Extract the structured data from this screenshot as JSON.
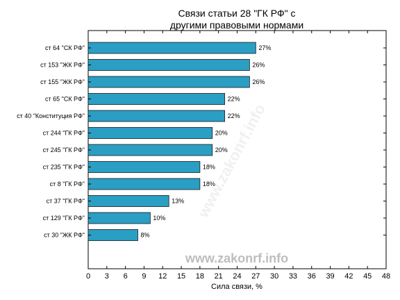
{
  "chart_data": {
    "type": "bar",
    "orientation": "horizontal",
    "title": "Связи статьи 28 \"ГК РФ\" с другими правовыми нормами",
    "title_lines": [
      "Связи статьи 28 \"ГК РФ\" с",
      "другими правовыми нормами"
    ],
    "xlabel": "Сила связи, %",
    "ylabel": "",
    "xlim": [
      0,
      48
    ],
    "xticks": [
      0,
      3,
      6,
      9,
      12,
      15,
      18,
      21,
      24,
      27,
      30,
      33,
      36,
      39,
      42,
      45,
      48
    ],
    "categories": [
      "ст 64 \"СК РФ\"",
      "ст 153 \"ЖК РФ\"",
      "ст 155 \"ЖК РФ\"",
      "ст 65 \"СК РФ\"",
      "ст 40 \"Конституция РФ\"",
      "ст 244 \"ГК РФ\"",
      "ст 245 \"ГК РФ\"",
      "ст 235 \"ГК РФ\"",
      "ст 8 \"ГК РФ\"",
      "ст 37 \"ГК РФ\"",
      "ст 129 \"ГК РФ\"",
      "ст 30 \"ЖК РФ\""
    ],
    "values": [
      27,
      26,
      26,
      22,
      22,
      20,
      20,
      18,
      18,
      13,
      10,
      8
    ],
    "value_labels": [
      "27%",
      "26%",
      "26%",
      "22%",
      "22%",
      "20%",
      "20%",
      "18%",
      "18%",
      "13%",
      "10%",
      "8%"
    ],
    "bar_color": "#2b9ec4",
    "bar_edge_color": "#1a1a1a",
    "grid": false
  },
  "watermark": {
    "text": "www.zakonrf.info",
    "diagonal_text": "www.zakonrf.info"
  }
}
